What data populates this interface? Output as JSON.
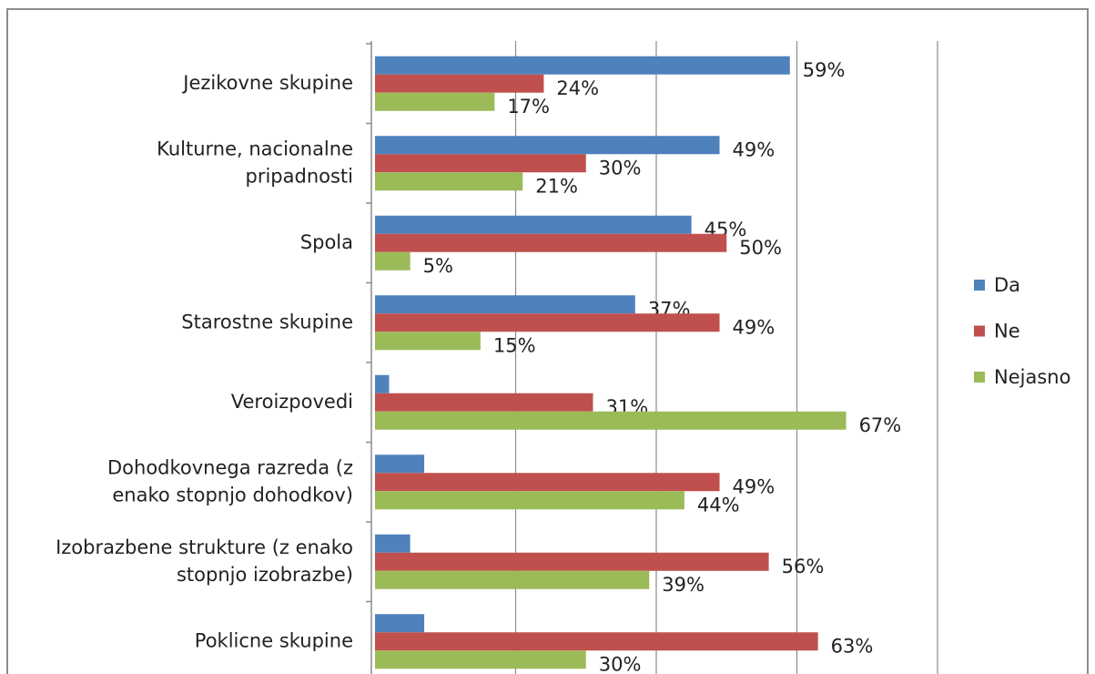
{
  "chart_data": {
    "type": "bar",
    "orientation": "horizontal",
    "categories": [
      [
        "Jezikovne skupine"
      ],
      [
        "Kulturne, nacionalne",
        "pripadnosti"
      ],
      [
        "Spola"
      ],
      [
        "Starostne skupine"
      ],
      [
        "Veroizpovedi"
      ],
      [
        "Dohodkovnega razreda (z",
        "enako stopnjo dohodkov)"
      ],
      [
        "Izobrazbene strukture (z enako",
        "stopnjo izobrazbe)"
      ],
      [
        "Poklicne skupine"
      ]
    ],
    "series": [
      {
        "name": "Da",
        "color": "#4f81bd",
        "values": [
          59,
          49,
          45,
          37,
          2,
          7,
          5,
          7
        ],
        "value_labels": [
          "59%",
          "49%",
          "45%",
          "37%",
          null,
          null,
          null,
          null
        ]
      },
      {
        "name": "Ne",
        "color": "#c0504d",
        "values": [
          24,
          30,
          50,
          49,
          31,
          49,
          56,
          63
        ],
        "value_labels": [
          "24%",
          "30%",
          "50%",
          "49%",
          "31%",
          "49%",
          "56%",
          "63%"
        ]
      },
      {
        "name": "Nejasno",
        "color": "#9bbb59",
        "values": [
          17,
          21,
          5,
          15,
          67,
          44,
          39,
          30
        ],
        "value_labels": [
          "17%",
          "21%",
          "5%",
          "15%",
          "67%",
          "44%",
          "39%",
          "30%"
        ]
      }
    ],
    "xlim": [
      0,
      80
    ],
    "xticks": [
      0,
      20,
      40,
      60,
      80
    ],
    "grid": true,
    "legend": "right"
  }
}
